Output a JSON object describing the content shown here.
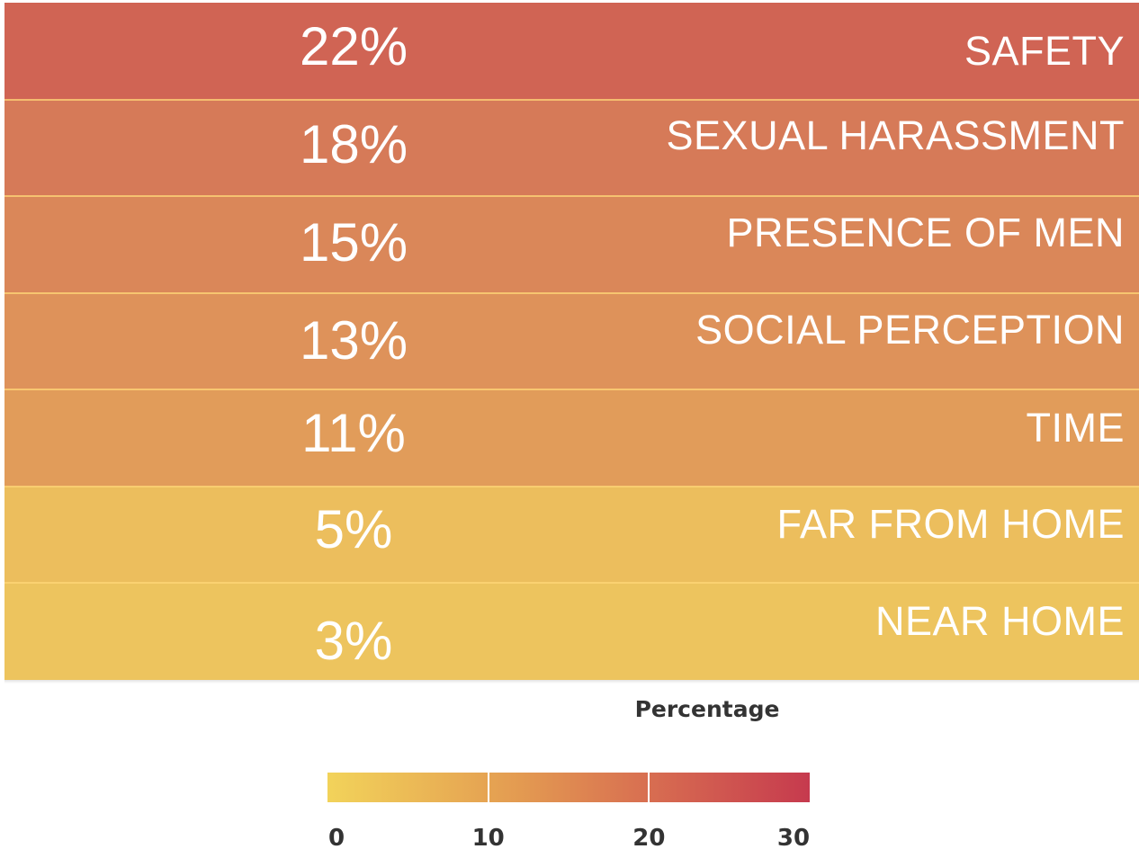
{
  "chart_data": {
    "type": "heatmap",
    "categories": [
      "SAFETY",
      "SEXUAL HARASSMENT",
      "PRESENCE OF MEN",
      "SOCIAL PERCEPTION",
      "TIME",
      "FAR FROM HOME",
      "NEAR HOME"
    ],
    "values": [
      22,
      18,
      15,
      13,
      11,
      5,
      3
    ],
    "value_labels": [
      "22%",
      "18%",
      "15%",
      "13%",
      "11%",
      "5%",
      "3%"
    ],
    "colors": [
      "#d06454",
      "#d67a58",
      "#da8759",
      "#de925a",
      "#e19c5a",
      "#ecbe5d",
      "#edc45e"
    ],
    "color_axis": {
      "title": "Percentage",
      "min": 0,
      "max": 30,
      "ticks": [
        0,
        10,
        20,
        30
      ],
      "tick_labels": [
        "0",
        "10",
        "20",
        "30"
      ],
      "gradient": [
        "#f2d35a",
        "#e39a51",
        "#d86f51",
        "#c63a4e"
      ],
      "position": "bottom"
    },
    "legend": "bottom"
  }
}
